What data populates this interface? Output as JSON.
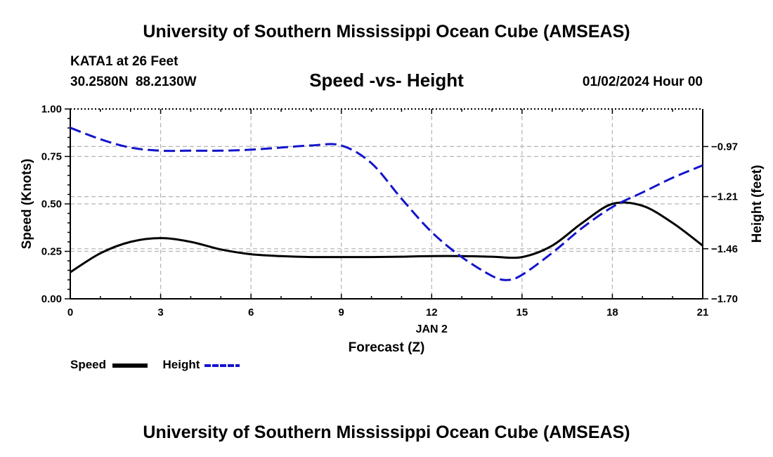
{
  "header": {
    "title": "University of Southern Mississippi Ocean Cube (AMSEAS)",
    "station": "KATA1 at 26 Feet",
    "coords": "30.2580N  88.2130W",
    "chart_title": "Speed -vs- Height",
    "datetime": "01/02/2024 Hour 00"
  },
  "footer": {
    "title": "University of Southern Mississippi Ocean Cube (AMSEAS)"
  },
  "colors": {
    "speed": "#000000",
    "height": "#1414cc"
  },
  "chart_data": {
    "type": "line",
    "title": "Speed -vs- Height",
    "xlabel": "Forecast (Z)",
    "xlabel_date": "JAN 2",
    "ylabel_left": "Speed (Knots)",
    "ylabel_right": "Height (feet)",
    "xlim": [
      0,
      21
    ],
    "ylim_left": [
      0,
      1
    ],
    "ylim_right": [
      -1.7,
      -0.79
    ],
    "x_ticks": [
      0,
      3,
      6,
      9,
      12,
      15,
      18,
      21
    ],
    "x_tick_labels": [
      "0",
      "3",
      "6",
      "9",
      "12",
      "15",
      "18",
      "21"
    ],
    "y_left_ticks": [
      0,
      0.25,
      0.5,
      0.75,
      1.0
    ],
    "y_left_tick_labels": [
      "0.00",
      "0.25",
      "0.50",
      "0.75",
      "1.00"
    ],
    "y_right_ticks": [
      -1.7,
      -1.46,
      -1.21,
      -0.97
    ],
    "y_right_tick_labels": [
      "−1.70",
      "−1.46",
      "−1.21",
      "−0.97"
    ],
    "grid": true,
    "legend": "bottom-left",
    "series": [
      {
        "name": "Speed",
        "axis": "left",
        "style": "solid",
        "x": [
          0,
          1,
          2,
          3,
          4,
          5,
          6,
          7,
          8,
          9,
          10,
          11,
          12,
          13,
          14,
          15,
          16,
          17,
          18,
          19,
          20,
          21
        ],
        "y": [
          0.14,
          0.24,
          0.3,
          0.32,
          0.3,
          0.26,
          0.235,
          0.225,
          0.22,
          0.22,
          0.22,
          0.222,
          0.225,
          0.225,
          0.222,
          0.22,
          0.28,
          0.4,
          0.5,
          0.49,
          0.4,
          0.28
        ]
      },
      {
        "name": "Height",
        "axis": "right",
        "style": "dashed",
        "x": [
          0,
          1,
          2,
          3,
          4,
          5,
          6,
          7,
          8,
          9,
          10,
          11,
          12,
          13,
          14,
          14.5,
          15,
          16,
          17,
          18,
          19,
          20,
          21
        ],
        "y": [
          -0.88,
          -0.935,
          -0.975,
          -0.99,
          -0.99,
          -0.99,
          -0.985,
          -0.975,
          -0.965,
          -0.965,
          -1.05,
          -1.22,
          -1.38,
          -1.5,
          -1.59,
          -1.61,
          -1.585,
          -1.48,
          -1.36,
          -1.26,
          -1.19,
          -1.12,
          -1.06
        ]
      }
    ]
  }
}
